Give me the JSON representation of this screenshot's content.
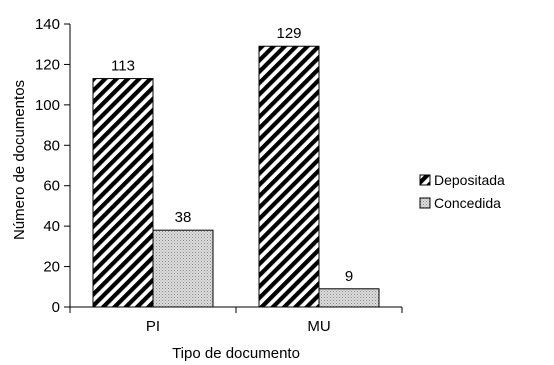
{
  "chart_data": {
    "type": "bar",
    "categories": [
      "PI",
      "MU"
    ],
    "series": [
      {
        "name": "Depositada",
        "values": [
          113,
          129
        ],
        "pattern": "diagonal-hatch"
      },
      {
        "name": "Concedida",
        "values": [
          38,
          9
        ],
        "pattern": "dotted-grey"
      }
    ],
    "xlabel": "Tipo de documento",
    "ylabel": "Número de documentos",
    "ylim": [
      0,
      140
    ],
    "yticks": [
      0,
      20,
      40,
      60,
      80,
      100,
      120,
      140
    ],
    "data_labels": true,
    "grid": false,
    "legend_position": "right",
    "colors": {
      "axis": "#000000",
      "bar_fill": "#ffffff",
      "hatch": "#000000",
      "dot_fill": "#d9d9d9",
      "dot": "#7f7f7f"
    }
  }
}
